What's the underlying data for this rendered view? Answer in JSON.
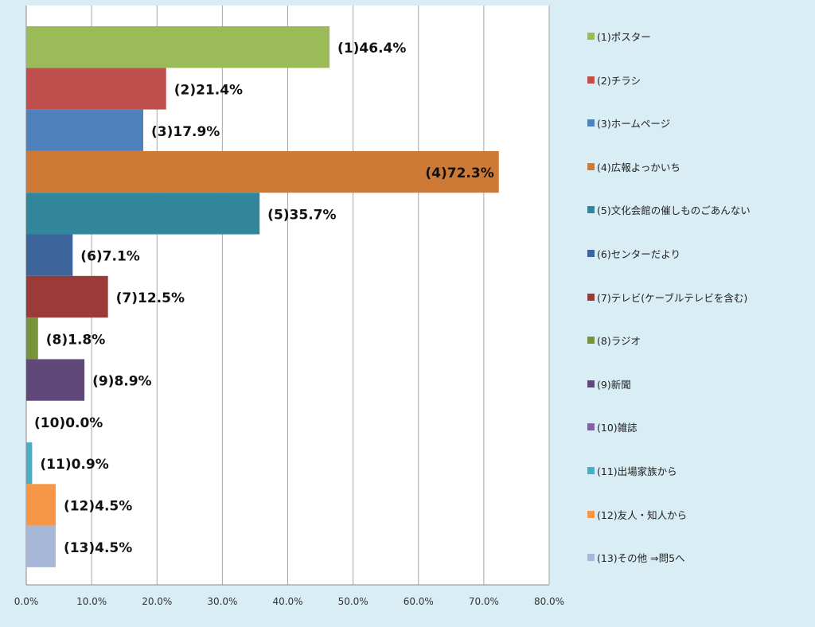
{
  "chart_data": {
    "type": "bar",
    "orientation": "horizontal",
    "title": "",
    "xlabel": "",
    "ylabel": "",
    "xlim": [
      0,
      80
    ],
    "x_ticks": [
      "0.0%",
      "10.0%",
      "20.0%",
      "30.0%",
      "40.0%",
      "50.0%",
      "60.0%",
      "70.0%",
      "80.0%"
    ],
    "grid": true,
    "legend_position": "right",
    "categories": [
      "(1)ポスター",
      "(2)チラシ",
      "(3)ホームページ",
      "(4)広報よっかいち",
      "(5)文化会館の催しものごあんない",
      "(6)センターだより",
      "(7)テレビ(ケーブルテレビを含む)",
      "(8)ラジオ",
      "(9)新聞",
      "(10)雑誌",
      "(11)出場家族から",
      "(12)友人・知人から",
      "(13)その他 ⇒問5へ"
    ],
    "values": [
      46.4,
      21.4,
      17.9,
      72.3,
      35.7,
      7.1,
      12.5,
      1.8,
      8.9,
      0.0,
      0.9,
      4.5,
      4.5
    ],
    "data_labels": [
      "(1)46.4%",
      "(2)21.4%",
      "(3)17.9%",
      "(4)72.3%",
      "(5)35.7%",
      "(6)7.1%",
      "(7)12.5%",
      "(8)1.8%",
      "(9)8.9%",
      "(10)0.0%",
      "(11)0.9%",
      "(12)4.5%",
      "(13)4.5%"
    ],
    "colors": [
      "#9bbb59",
      "#c0504d",
      "#4f81bd",
      "#cc7a36",
      "#31869b",
      "#3d659c",
      "#9a3b39",
      "#77933c",
      "#60497a",
      "#8064a2",
      "#4bacc6",
      "#f79646",
      "#a7b7d8"
    ]
  }
}
